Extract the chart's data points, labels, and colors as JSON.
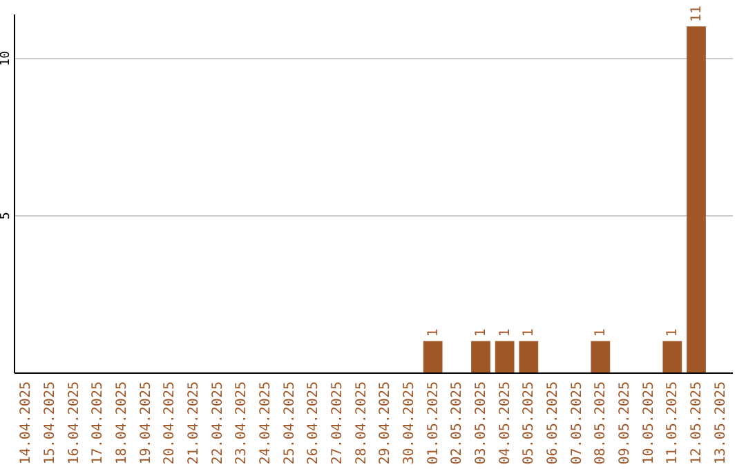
{
  "chart_data": {
    "type": "bar",
    "categories": [
      "14.04.2025",
      "15.04.2025",
      "16.04.2025",
      "17.04.2025",
      "18.04.2025",
      "19.04.2025",
      "20.04.2025",
      "21.04.2025",
      "22.04.2025",
      "23.04.2025",
      "24.04.2025",
      "25.04.2025",
      "26.04.2025",
      "27.04.2025",
      "28.04.2025",
      "29.04.2025",
      "30.04.2025",
      "01.05.2025",
      "02.05.2025",
      "03.05.2025",
      "04.05.2025",
      "05.05.2025",
      "06.05.2025",
      "07.05.2025",
      "08.05.2025",
      "09.05.2025",
      "10.05.2025",
      "11.05.2025",
      "12.05.2025",
      "13.05.2025"
    ],
    "values": [
      0,
      0,
      0,
      0,
      0,
      0,
      0,
      0,
      0,
      0,
      0,
      0,
      0,
      0,
      0,
      0,
      0,
      1,
      0,
      1,
      1,
      1,
      0,
      0,
      1,
      0,
      0,
      1,
      11,
      0
    ],
    "value_labels": [
      null,
      null,
      null,
      null,
      null,
      null,
      null,
      null,
      null,
      null,
      null,
      null,
      null,
      null,
      null,
      null,
      null,
      "1",
      null,
      "1",
      "1",
      "1",
      null,
      null,
      "1",
      null,
      null,
      "1",
      "11",
      null
    ],
    "color": "#a15829",
    "ylim": [
      0,
      11.4
    ],
    "yticks": [
      5,
      10
    ],
    "grid": "y"
  }
}
